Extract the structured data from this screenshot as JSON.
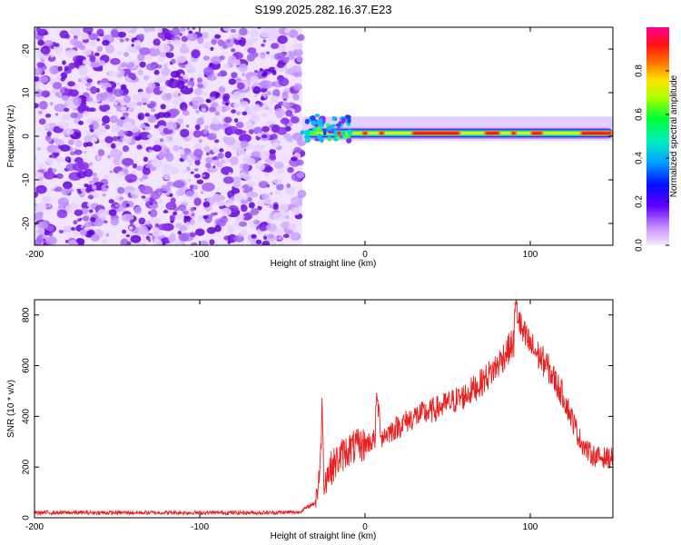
{
  "title": "S199.2025.282.16.37.E23",
  "chart_data": [
    {
      "type": "heatmap",
      "title": "S199.2025.282.16.37.E23",
      "xlabel": "Height of straight line (km)",
      "ylabel": "Frequency (Hz)",
      "xlim": [
        -200,
        150
      ],
      "ylim": [
        -25,
        25
      ],
      "xticks": [
        -200,
        -100,
        0,
        100
      ],
      "yticks": [
        -20,
        -10,
        0,
        10,
        20
      ],
      "noise_region_x": [
        -200,
        -38
      ],
      "signal_band_hz": [
        0,
        3
      ],
      "colorbar": {
        "label": "Normalized spectral amplitude",
        "range": [
          0,
          1
        ],
        "ticks": [
          "0.0",
          "0.2",
          "0.4",
          "0.6",
          "0.8"
        ],
        "colors": [
          "#f0e0ff",
          "#d8a8ff",
          "#8a2be2",
          "#2000ff",
          "#0080ff",
          "#00e0e0",
          "#00ff40",
          "#a0ff00",
          "#ffe000",
          "#ff8000",
          "#ff2020",
          "#ff0080"
        ]
      }
    },
    {
      "type": "line",
      "xlabel": "Height of straight line (km)",
      "ylabel": "SNR (10 * v/v)",
      "xlim": [
        -200,
        150
      ],
      "ylim": [
        0,
        860
      ],
      "xticks": [
        -200,
        -100,
        0,
        100
      ],
      "yticks": [
        0,
        200,
        400,
        600,
        800
      ],
      "color": "#e82020",
      "series": [
        {
          "name": "SNR",
          "x": [
            -200,
            -150,
            -100,
            -60,
            -40,
            -30,
            -27,
            -26,
            -25,
            -20,
            -15,
            -10,
            0,
            6,
            7,
            10,
            20,
            30,
            40,
            50,
            60,
            70,
            80,
            85,
            90,
            91,
            95,
            100,
            110,
            120,
            130,
            135,
            140,
            150
          ],
          "y": [
            20,
            20,
            20,
            20,
            22,
            60,
            200,
            470,
            150,
            200,
            240,
            270,
            290,
            310,
            490,
            320,
            360,
            400,
            420,
            450,
            480,
            530,
            600,
            650,
            690,
            850,
            730,
            680,
            600,
            480,
            310,
            260,
            240,
            235
          ]
        }
      ]
    }
  ]
}
